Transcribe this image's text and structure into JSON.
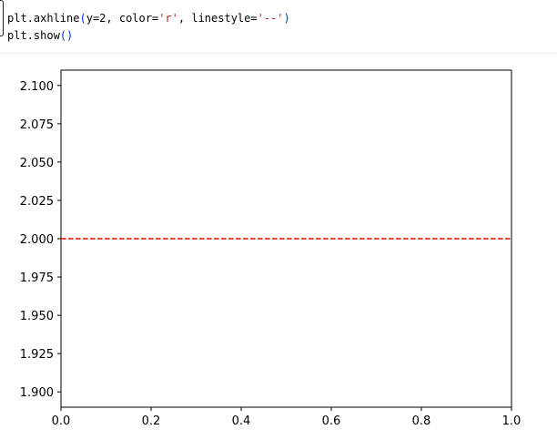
{
  "code": [
    [
      {
        "text": "plt.axhline",
        "color": "#000000"
      },
      {
        "text": "(",
        "color": "#0033cc"
      },
      {
        "text": "y=2, color=",
        "color": "#000000"
      },
      {
        "text": "'r'",
        "color": "#ba2121"
      },
      {
        "text": ", linestyle=",
        "color": "#000000"
      },
      {
        "text": "'--'",
        "color": "#ba2121"
      },
      {
        "text": ")",
        "color": "#0033cc"
      }
    ],
    [
      {
        "text": "plt.show",
        "color": "#000000"
      },
      {
        "text": "()",
        "color": "#0033cc"
      }
    ]
  ],
  "chart_data": {
    "type": "line",
    "x": [
      0,
      1
    ],
    "series": [
      {
        "values": [
          2,
          2
        ],
        "color": "#ff0000",
        "linestyle": "--"
      }
    ],
    "xlim": [
      0,
      1
    ],
    "xticks": [
      {
        "value": 0,
        "label": "0.0"
      },
      {
        "value": 0.2,
        "label": "0.2"
      },
      {
        "value": 0.4,
        "label": "0.4"
      },
      {
        "value": 0.6,
        "label": "0.6"
      },
      {
        "value": 0.8,
        "label": "0.8"
      },
      {
        "value": 1,
        "label": "1.0"
      }
    ],
    "ylim": [
      1.89,
      2.11
    ],
    "yticks": [
      {
        "value": 1.9,
        "label": "1.900"
      },
      {
        "value": 1.925,
        "label": "1.925"
      },
      {
        "value": 1.95,
        "label": "1.950"
      },
      {
        "value": 1.975,
        "label": "1.975"
      },
      {
        "value": 2,
        "label": "2.000"
      },
      {
        "value": 2.025,
        "label": "2.025"
      },
      {
        "value": 2.05,
        "label": "2.050"
      },
      {
        "value": 2.075,
        "label": "2.075"
      },
      {
        "value": 2.1,
        "label": "2.100"
      }
    ],
    "grid": false
  }
}
